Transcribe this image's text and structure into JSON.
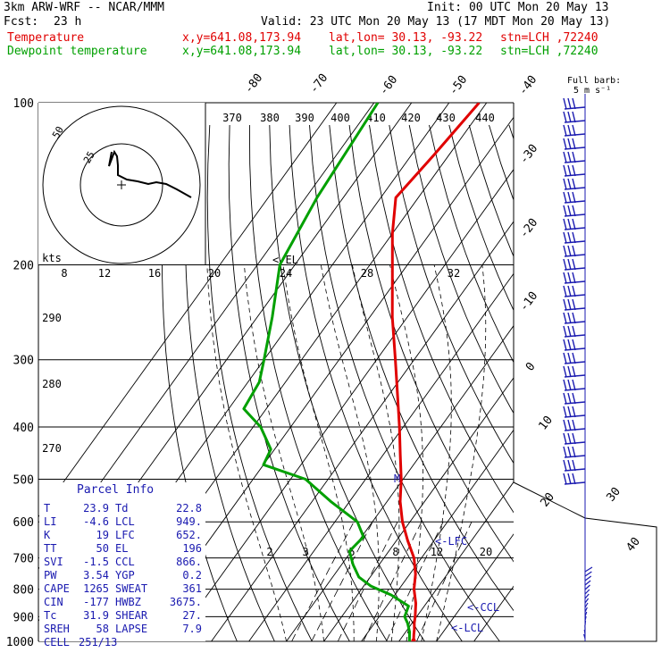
{
  "header": {
    "model": "3km ARW-WRF -- NCAR/MMM",
    "init": "Init: 00 UTC Mon 20 May 13",
    "fcst_label": "Fcst:",
    "fcst_value": "23 h",
    "valid": "Valid: 23 UTC Mon 20 May 13 (17 MDT Mon 20 May 13)",
    "temp_label": "Temperature",
    "dew_label": "Dewpoint temperature",
    "xy": "x,y=641.08,173.94",
    "latlon": "lat,lon= 30.13, -93.22",
    "stn": "stn=LCH ,72240"
  },
  "colors": {
    "temperature": "#e00000",
    "dewpoint": "#00a000",
    "parcel_text": "#1a1ab0",
    "grid": "#000000"
  },
  "chart_data": {
    "type": "line",
    "title": "Skew-T log-P sounding",
    "pressure_ticks": [
      "100",
      "200",
      "300",
      "400",
      "500",
      "600",
      "700",
      "800",
      "900",
      "1000"
    ],
    "isotherm_labels": [
      "-80",
      "-70",
      "-60",
      "-50",
      "-40",
      "-30",
      "-20",
      "-10",
      "0",
      "10",
      "20",
      "30",
      "40"
    ],
    "theta_labels": [
      "370",
      "380",
      "390",
      "400",
      "410",
      "420",
      "430",
      "440"
    ],
    "theta_lower_labels": [
      "290",
      "280",
      "270"
    ],
    "mixing_ratio_labels": [
      "2",
      "3",
      "5",
      "8",
      "12",
      "20"
    ],
    "hodo_speed_labels": [
      "kts",
      "8",
      "12",
      "16",
      "20",
      "24",
      "28",
      "32"
    ],
    "hodo_ring_labels": [
      "50",
      "25"
    ],
    "level_markers": [
      "<-EL",
      "M",
      "<-LFC",
      "<-CCL",
      "<-LCL"
    ],
    "wind_label": "Full barb:",
    "wind_units": "5 m s⁻¹",
    "series": [
      {
        "name": "Temperature",
        "points": [
          {
            "p": 1000,
            "t": 23.9
          },
          {
            "p": 970,
            "t": 22.6
          },
          {
            "p": 950,
            "t": 21.8
          },
          {
            "p": 925,
            "t": 20.6
          },
          {
            "p": 900,
            "t": 19.6
          },
          {
            "p": 850,
            "t": 17.2
          },
          {
            "p": 800,
            "t": 14.0
          },
          {
            "p": 750,
            "t": 11.5
          },
          {
            "p": 700,
            "t": 8.0
          },
          {
            "p": 650,
            "t": 3.0
          },
          {
            "p": 600,
            "t": -2.0
          },
          {
            "p": 550,
            "t": -6.5
          },
          {
            "p": 500,
            "t": -10.5
          },
          {
            "p": 450,
            "t": -15.5
          },
          {
            "p": 400,
            "t": -21.0
          },
          {
            "p": 350,
            "t": -27.5
          },
          {
            "p": 300,
            "t": -35.0
          },
          {
            "p": 250,
            "t": -44.0
          },
          {
            "p": 200,
            "t": -54.0
          },
          {
            "p": 175,
            "t": -60.0
          },
          {
            "p": 150,
            "t": -66.0
          },
          {
            "p": 125,
            "t": -64.0
          },
          {
            "p": 100,
            "t": -62.0
          }
        ]
      },
      {
        "name": "Dewpoint temperature",
        "points": [
          {
            "p": 1000,
            "t": 22.8
          },
          {
            "p": 960,
            "t": 21.0
          },
          {
            "p": 925,
            "t": 18.8
          },
          {
            "p": 900,
            "t": 16.8
          },
          {
            "p": 860,
            "t": 15.8
          },
          {
            "p": 820,
            "t": 9.0
          },
          {
            "p": 790,
            "t": 2.0
          },
          {
            "p": 760,
            "t": -3.0
          },
          {
            "p": 720,
            "t": -7.0
          },
          {
            "p": 680,
            "t": -10.5
          },
          {
            "p": 640,
            "t": -9.5
          },
          {
            "p": 600,
            "t": -14.0
          },
          {
            "p": 550,
            "t": -25.0
          },
          {
            "p": 500,
            "t": -36.0
          },
          {
            "p": 470,
            "t": -50.0
          },
          {
            "p": 440,
            "t": -51.0
          },
          {
            "p": 400,
            "t": -58.0
          },
          {
            "p": 370,
            "t": -66.0
          },
          {
            "p": 330,
            "t": -67.0
          },
          {
            "p": 300,
            "t": -70.0
          },
          {
            "p": 250,
            "t": -76.0
          },
          {
            "p": 200,
            "t": -84.0
          },
          {
            "p": 150,
            "t": -87.0
          },
          {
            "p": 100,
            "t": -89.0
          }
        ]
      }
    ]
  },
  "parcel": {
    "title": "Parcel Info",
    "rows": [
      [
        "T",
        "23.9",
        "Td",
        "22.8"
      ],
      [
        "LI",
        "-4.6",
        "LCL",
        "949."
      ],
      [
        "K",
        "19",
        "LFC",
        "652."
      ],
      [
        "TT",
        "50",
        "EL",
        "196"
      ],
      [
        "SVI",
        "-1.5",
        "CCL",
        "866."
      ],
      [
        "PW",
        "3.54",
        "YGP",
        "0.2"
      ],
      [
        "CAPE",
        "1265",
        "SWEAT",
        "361"
      ],
      [
        "CIN",
        "-177",
        "HWBZ",
        "3675."
      ],
      [
        "Tc",
        "31.9",
        "SHEAR",
        "27."
      ],
      [
        "SREH",
        "58",
        "LAPSE",
        "7.9"
      ]
    ],
    "cell_label": "CELL",
    "cell_value": "251/13"
  }
}
